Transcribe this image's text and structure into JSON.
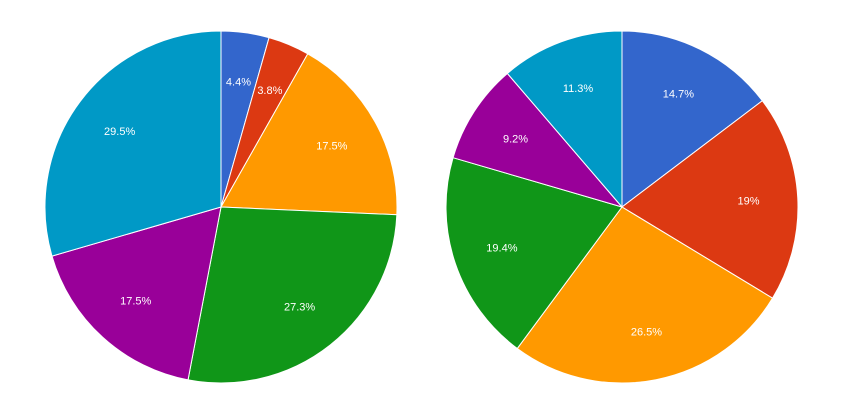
{
  "chart_data": [
    {
      "type": "pie",
      "title": "",
      "start_angle_deg": 0,
      "direction": "clockwise",
      "legend": "none",
      "slices": [
        {
          "value": 4.4,
          "label": "4.4%",
          "color": "#3366cc"
        },
        {
          "value": 3.8,
          "label": "3.8%",
          "color": "#dc3912"
        },
        {
          "value": 17.5,
          "label": "17.5%",
          "color": "#ff9900"
        },
        {
          "value": 27.3,
          "label": "27.3%",
          "color": "#109618"
        },
        {
          "value": 17.5,
          "label": "17.5%",
          "color": "#990099"
        },
        {
          "value": 29.5,
          "label": "29.5%",
          "color": "#0099c6"
        }
      ]
    },
    {
      "type": "pie",
      "title": "",
      "start_angle_deg": 0,
      "direction": "clockwise",
      "legend": "none",
      "slices": [
        {
          "value": 14.7,
          "label": "14.7%",
          "color": "#3366cc"
        },
        {
          "value": 19,
          "label": "19%",
          "color": "#dc3912"
        },
        {
          "value": 26.5,
          "label": "26.5%",
          "color": "#ff9900"
        },
        {
          "value": 19.4,
          "label": "19.4%",
          "color": "#109618"
        },
        {
          "value": 9.2,
          "label": "9.2%",
          "color": "#990099"
        },
        {
          "value": 11.3,
          "label": "11.3%",
          "color": "#0099c6"
        }
      ]
    }
  ]
}
